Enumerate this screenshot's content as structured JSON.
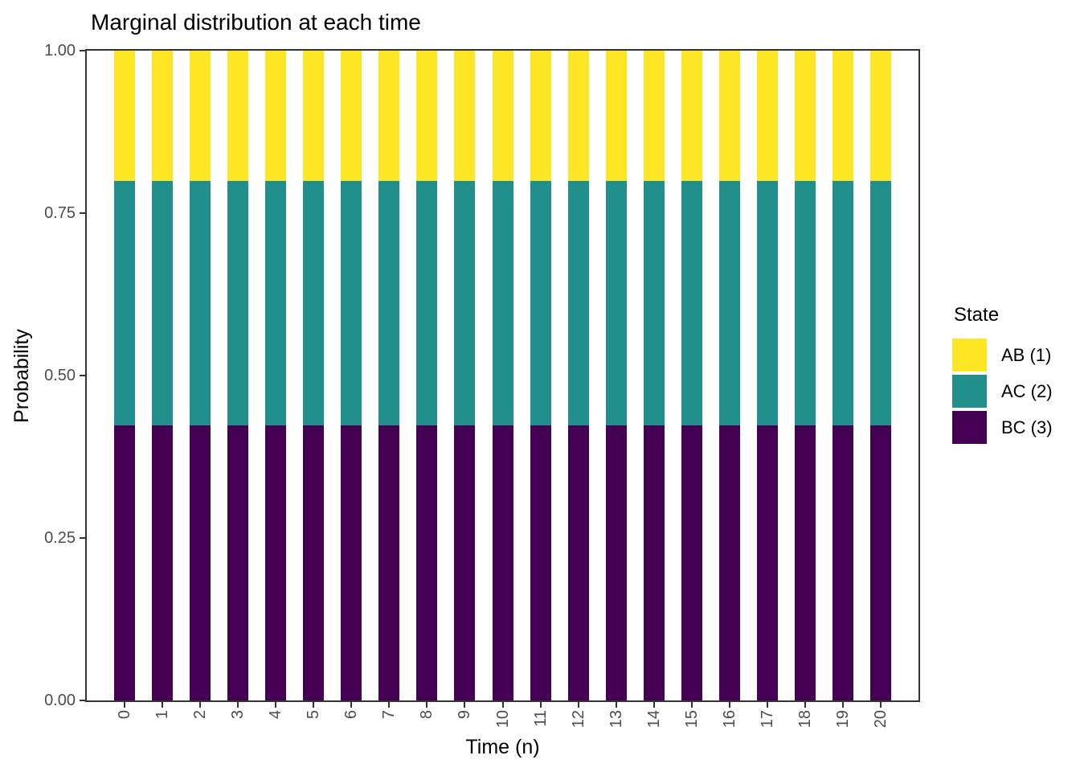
{
  "figure": {
    "title": "Marginal distribution at each time"
  },
  "chart_data": {
    "type": "bar",
    "stacked": true,
    "title": "Marginal distribution at each time",
    "xlabel": "Time (n)",
    "ylabel": "Probability",
    "categories": [
      "0",
      "1",
      "2",
      "3",
      "4",
      "5",
      "6",
      "7",
      "8",
      "9",
      "10",
      "11",
      "12",
      "13",
      "14",
      "15",
      "16",
      "17",
      "18",
      "19",
      "20"
    ],
    "series": [
      {
        "name": "BC (3)",
        "color": "#440154",
        "values": [
          0.423,
          0.423,
          0.423,
          0.423,
          0.423,
          0.423,
          0.423,
          0.423,
          0.423,
          0.423,
          0.423,
          0.423,
          0.423,
          0.423,
          0.423,
          0.423,
          0.423,
          0.423,
          0.423,
          0.423,
          0.423
        ]
      },
      {
        "name": "AC (2)",
        "color": "#21908C",
        "values": [
          0.377,
          0.377,
          0.377,
          0.377,
          0.377,
          0.377,
          0.377,
          0.377,
          0.377,
          0.377,
          0.377,
          0.377,
          0.377,
          0.377,
          0.377,
          0.377,
          0.377,
          0.377,
          0.377,
          0.377,
          0.377
        ]
      },
      {
        "name": "AB (1)",
        "color": "#FDE725",
        "values": [
          0.2,
          0.2,
          0.2,
          0.2,
          0.2,
          0.2,
          0.2,
          0.2,
          0.2,
          0.2,
          0.2,
          0.2,
          0.2,
          0.2,
          0.2,
          0.2,
          0.2,
          0.2,
          0.2,
          0.2,
          0.2
        ]
      }
    ],
    "ylim": [
      0,
      1
    ],
    "yticks": [
      "0.00",
      "0.25",
      "0.50",
      "0.75",
      "1.00"
    ],
    "grid": false,
    "legend": {
      "title": "State",
      "position": "right",
      "entries": [
        {
          "label": "AB (1)",
          "color": "#FDE725"
        },
        {
          "label": "AC (2)",
          "color": "#21908C"
        },
        {
          "label": "BC (3)",
          "color": "#440154"
        }
      ]
    },
    "colors": {
      "axis": "#333333",
      "tick_text": "#4d4d4d",
      "background": "#ffffff"
    }
  }
}
